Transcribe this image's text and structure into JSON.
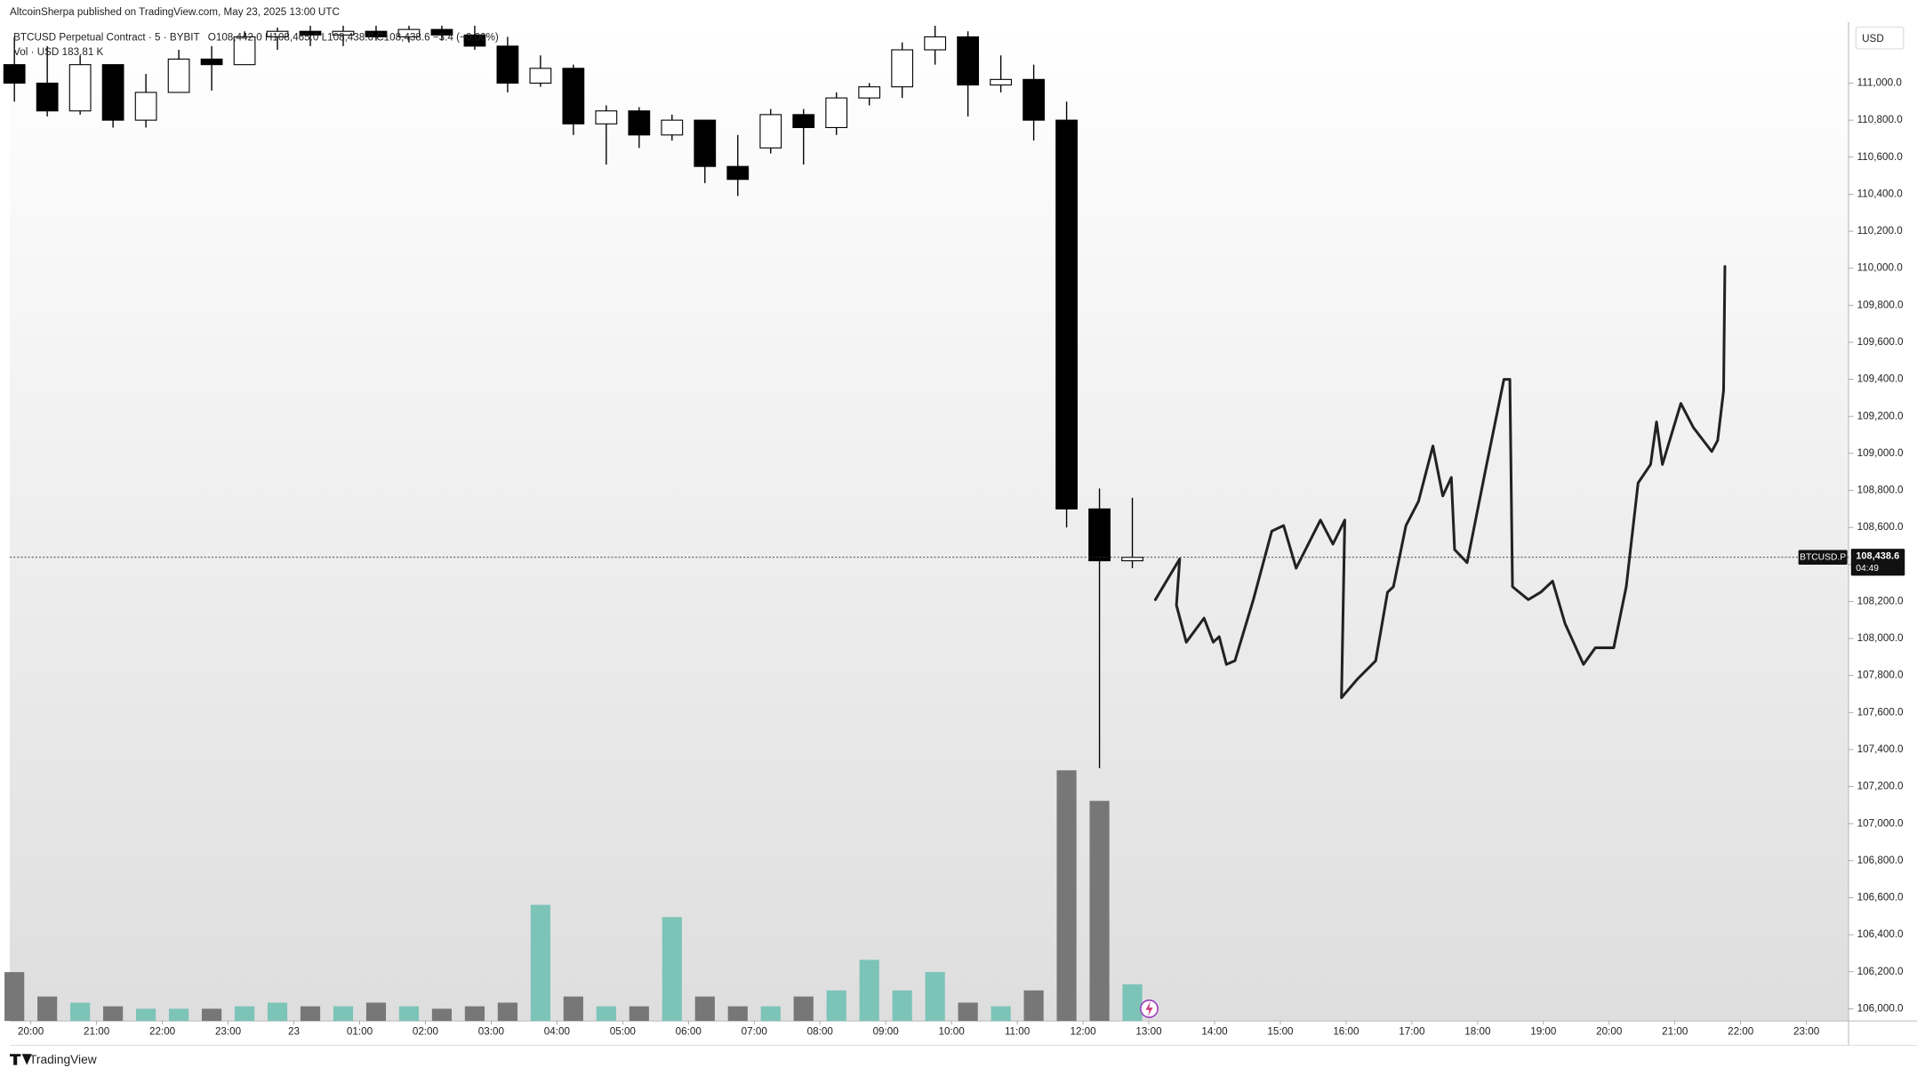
{
  "chart_data": {
    "type": "candlestick",
    "title": "AltcoinSherpa published on TradingView.com, May 23, 2025 13:00 UTC",
    "symbol_line": "BTCUSD Perpetual Contract · 5 · BYBIT",
    "ohlc_line": "O108,442.0 H108,465.0 L108,438.6 C108,438.6 −3.4 (−0.00%)",
    "volume_line": "Vol · USD 183.81 K",
    "currency": "USD",
    "symbol_tag": "BTCUSD.P",
    "last_price": {
      "value": 108438.6,
      "label": "108,438.6"
    },
    "countdown": "04:49",
    "brand": "TradingView",
    "x": [
      -0.25,
      0.25,
      0.75,
      1.25,
      1.75,
      2.25,
      2.75,
      3.25,
      3.75,
      4.25,
      4.75,
      5.25,
      5.75,
      6.25,
      6.75,
      7.25,
      7.75,
      8.25,
      8.75,
      9.25,
      9.75,
      10.25,
      10.75,
      11.25,
      11.75,
      12.25,
      12.75,
      13.25,
      13.75,
      14.25,
      14.75,
      15.25,
      15.75,
      16.25,
      16.75
    ],
    "open": [
      111100,
      111000,
      110850,
      111100,
      110800,
      110950,
      111130,
      111100,
      111250,
      111280,
      111260,
      111280,
      111250,
      111290,
      111260,
      111200,
      111000,
      111080,
      110780,
      110850,
      110720,
      110800,
      110550,
      110650,
      110830,
      110760,
      110920,
      110980,
      111180,
      111250,
      110990,
      111020,
      110800,
      108700,
      108420
    ],
    "high": [
      111250,
      111200,
      111150,
      111100,
      111050,
      111180,
      111200,
      111280,
      111300,
      111310,
      111310,
      111310,
      111310,
      111310,
      111310,
      111250,
      111150,
      111100,
      110880,
      110870,
      110830,
      110800,
      110720,
      110860,
      110860,
      110950,
      111000,
      111220,
      111310,
      111280,
      111150,
      111100,
      110900,
      108810,
      108760
    ],
    "low": [
      110900,
      110820,
      110830,
      110760,
      110760,
      110950,
      110960,
      111100,
      111180,
      111200,
      111200,
      111230,
      111220,
      111230,
      111180,
      110950,
      110980,
      110720,
      110560,
      110650,
      110690,
      110460,
      110390,
      110620,
      110560,
      110720,
      110880,
      110920,
      111100,
      110820,
      110950,
      110690,
      108600,
      107300,
      108380
    ],
    "close": [
      111000,
      110850,
      111100,
      110800,
      110950,
      111130,
      111100,
      111250,
      111280,
      111260,
      111280,
      111250,
      111290,
      111260,
      111200,
      111000,
      111080,
      110780,
      110850,
      110720,
      110800,
      110550,
      110480,
      110830,
      110760,
      110920,
      110980,
      111180,
      111250,
      110990,
      111020,
      110800,
      108700,
      108420,
      108438.6
    ],
    "volume": [
      40,
      20,
      15,
      12,
      10,
      10,
      10,
      12,
      15,
      12,
      12,
      15,
      12,
      10,
      12,
      15,
      95,
      20,
      12,
      12,
      85,
      20,
      12,
      12,
      20,
      25,
      50,
      25,
      40,
      15,
      12,
      25,
      205,
      180,
      30
    ],
    "up_color": "#ffffff",
    "down_color": "#000000",
    "volume_up_color": "#7cc3b8",
    "volume_down_color": "#777777",
    "drawing": {
      "color": "#222222",
      "x": [
        17.1,
        17.47,
        17.42,
        17.57,
        17.84,
        17.98,
        18.07,
        18.18,
        18.31,
        18.59,
        18.87,
        19.05,
        19.24,
        19.61,
        19.8,
        19.98,
        19.93,
        20.17,
        20.45,
        20.63,
        20.72,
        20.91,
        21.1,
        21.32,
        21.47,
        21.6,
        21.65,
        21.84,
        22.12,
        22.4,
        22.49,
        22.53,
        22.77,
        22.96,
        23.14,
        23.33,
        23.61,
        23.79,
        24.07,
        24.26,
        24.44,
        24.63,
        24.72,
        24.81,
        25.09,
        25.28,
        25.56,
        25.65,
        25.74,
        25.76
      ],
      "y": [
        108210,
        108430,
        108180,
        107980,
        108110,
        107980,
        108010,
        107860,
        107880,
        108210,
        108580,
        108610,
        108380,
        108640,
        108510,
        108640,
        107680,
        107780,
        107880,
        108250,
        108280,
        108610,
        108740,
        109040,
        108770,
        108870,
        108480,
        108410,
        108910,
        109400,
        109400,
        108280,
        108210,
        108250,
        108310,
        108080,
        107860,
        107950,
        107950,
        108280,
        108840,
        108940,
        109170,
        108940,
        109270,
        109140,
        109010,
        109070,
        109340,
        110010
      ]
    },
    "xlim": [
      -0.32,
      27.64
    ],
    "xticks": [
      {
        "value": 0,
        "label": "20:00"
      },
      {
        "value": 1,
        "label": "21:00"
      },
      {
        "value": 2,
        "label": "22:00"
      },
      {
        "value": 3,
        "label": "23:00"
      },
      {
        "value": 4,
        "label": "23"
      },
      {
        "value": 5,
        "label": "01:00"
      },
      {
        "value": 6,
        "label": "02:00"
      },
      {
        "value": 7,
        "label": "03:00"
      },
      {
        "value": 8,
        "label": "04:00"
      },
      {
        "value": 9,
        "label": "05:00"
      },
      {
        "value": 10,
        "label": "06:00"
      },
      {
        "value": 11,
        "label": "07:00"
      },
      {
        "value": 12,
        "label": "08:00"
      },
      {
        "value": 13,
        "label": "09:00"
      },
      {
        "value": 14,
        "label": "10:00"
      },
      {
        "value": 15,
        "label": "11:00"
      },
      {
        "value": 16,
        "label": "12:00"
      },
      {
        "value": 17,
        "label": "13:00"
      },
      {
        "value": 18,
        "label": "14:00"
      },
      {
        "value": 19,
        "label": "15:00"
      },
      {
        "value": 20,
        "label": "16:00"
      },
      {
        "value": 21,
        "label": "17:00"
      },
      {
        "value": 22,
        "label": "18:00"
      },
      {
        "value": 23,
        "label": "19:00"
      },
      {
        "value": 24,
        "label": "20:00"
      },
      {
        "value": 25,
        "label": "21:00"
      },
      {
        "value": 26,
        "label": "22:00"
      },
      {
        "value": 27,
        "label": "23:00"
      }
    ],
    "ylim": [
      105934,
      111317
    ],
    "yticks": [
      {
        "value": 106000,
        "label": "106,000.0"
      },
      {
        "value": 106200,
        "label": "106,200.0"
      },
      {
        "value": 106400,
        "label": "106,400.0"
      },
      {
        "value": 106600,
        "label": "106,600.0"
      },
      {
        "value": 106800,
        "label": "106,800.0"
      },
      {
        "value": 107000,
        "label": "107,000.0"
      },
      {
        "value": 107200,
        "label": "107,200.0"
      },
      {
        "value": 107400,
        "label": "107,400.0"
      },
      {
        "value": 107600,
        "label": "107,600.0"
      },
      {
        "value": 107800,
        "label": "107,800.0"
      },
      {
        "value": 108000,
        "label": "108,000.0"
      },
      {
        "value": 108200,
        "label": "108,200.0"
      },
      {
        "value": 108400,
        "label": "108,400.0"
      },
      {
        "value": 108600,
        "label": "108,600.0"
      },
      {
        "value": 108800,
        "label": "108,800.0"
      },
      {
        "value": 109000,
        "label": "109,000.0"
      },
      {
        "value": 109200,
        "label": "109,200.0"
      },
      {
        "value": 109400,
        "label": "109,400.0"
      },
      {
        "value": 109600,
        "label": "109,600.0"
      },
      {
        "value": 109800,
        "label": "109,800.0"
      },
      {
        "value": 110000,
        "label": "110,000.0"
      },
      {
        "value": 110200,
        "label": "110,200.0"
      },
      {
        "value": 110400,
        "label": "110,400.0"
      },
      {
        "value": 110600,
        "label": "110,600.0"
      },
      {
        "value": 110800,
        "label": "110,800.0"
      },
      {
        "value": 111000,
        "label": "111,000.0"
      }
    ],
    "grid": false
  }
}
